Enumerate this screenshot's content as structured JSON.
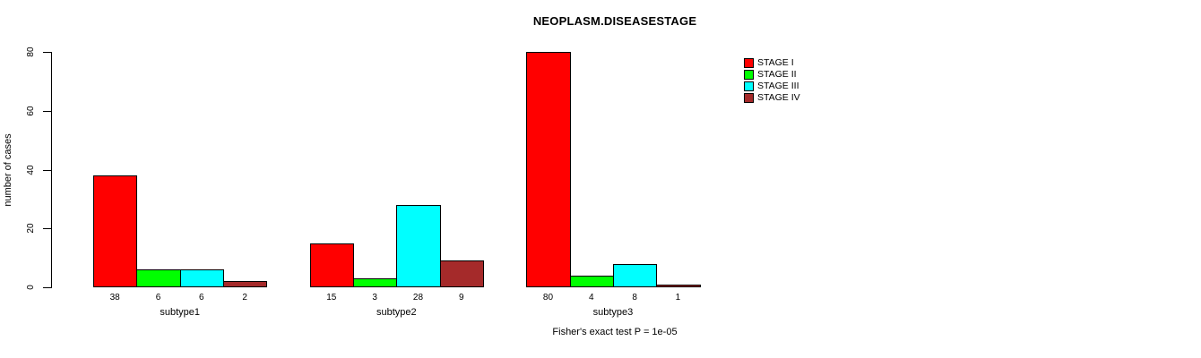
{
  "chart_data": {
    "type": "bar",
    "title": "NEOPLASM.DISEASESTAGE",
    "ylabel": "number of cases",
    "xlabel": "",
    "footnote": "Fisher's exact test P = 1e-05",
    "categories": [
      "subtype1",
      "subtype2",
      "subtype3"
    ],
    "series": [
      {
        "name": "STAGE I",
        "color": "#FF0000",
        "values": [
          38,
          15,
          80
        ]
      },
      {
        "name": "STAGE II",
        "color": "#00FF00",
        "values": [
          6,
          3,
          4
        ]
      },
      {
        "name": "STAGE III",
        "color": "#00FFFF",
        "values": [
          6,
          28,
          8
        ]
      },
      {
        "name": "STAGE IV",
        "color": "#A52A2A",
        "values": [
          2,
          9,
          1
        ]
      }
    ],
    "group_value_labels": [
      [
        38,
        6,
        6,
        2
      ],
      [
        15,
        3,
        28,
        9
      ],
      [
        80,
        4,
        8,
        1
      ]
    ],
    "ylim": [
      0,
      80
    ],
    "yticks": [
      0,
      20,
      40,
      60,
      80
    ],
    "legend_position": "right",
    "grid": false,
    "bar_border_color": "#000000",
    "background_color": "#FFFFFF"
  }
}
